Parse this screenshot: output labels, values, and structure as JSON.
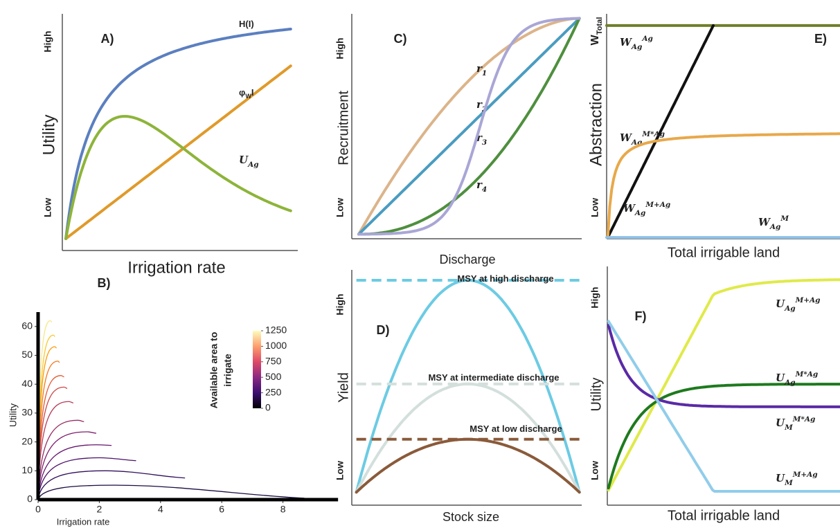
{
  "chart_data": [
    {
      "type": "schematic",
      "title": "A)",
      "xlabel": "Irrigation rate",
      "ylabel": "Utility",
      "ylevels": [
        "Low",
        "High"
      ],
      "series": [
        {
          "name": [
            {
              "text": "H(I)"
            }
          ],
          "color": "#5b7fc0"
        },
        {
          "name": [
            {
              "text": "φ"
            },
            {
              "text": "W",
              "shift": "sub"
            },
            {
              "text": "I"
            }
          ],
          "color": "#e09a2a"
        },
        {
          "name": [
            {
              "text": "U"
            },
            {
              "text": "Ag",
              "shift": "sub"
            }
          ],
          "color": "#8db43a"
        }
      ]
    },
    {
      "type": "line",
      "title": "B)",
      "xlabel": "Irrigation rate",
      "ylabel": "Utility",
      "xlim": [
        0,
        9.8
      ],
      "ylim": [
        0,
        65
      ],
      "xticks": [
        0,
        2,
        4,
        6,
        8
      ],
      "yticks": [
        0,
        10,
        20,
        30,
        40,
        50,
        60
      ],
      "colorbar": {
        "title": [
          "Available area to",
          "irrigate"
        ],
        "range": [
          0,
          1250
        ],
        "ticks": [
          0,
          250,
          500,
          750,
          1000,
          1250
        ],
        "colors": [
          "#000004",
          "#3b0f70",
          "#8c2981",
          "#de4968",
          "#fe9f6d",
          "#fcfdbf"
        ]
      },
      "series": [
        {
          "color": "#1b0c41",
          "x": [
            0,
            2.5,
            8.7
          ],
          "values": [
            0,
            5,
            0.5
          ]
        },
        {
          "color": "#2f0f5c",
          "x": [
            0,
            2.2,
            4.8
          ],
          "values": [
            0,
            10,
            7.5
          ]
        },
        {
          "color": "#4a1068",
          "x": [
            0,
            2.0,
            3.2
          ],
          "values": [
            0,
            14.5,
            13.5
          ]
        },
        {
          "color": "#65156e",
          "x": [
            0,
            1.9,
            2.4
          ],
          "values": [
            0,
            19,
            18.8
          ]
        },
        {
          "color": "#7e1e6c",
          "x": [
            0,
            1.6,
            1.9
          ],
          "values": [
            0,
            23.5,
            23
          ]
        },
        {
          "color": "#972c63",
          "x": [
            0,
            1.3,
            1.5
          ],
          "values": [
            0,
            27.5,
            27
          ]
        },
        {
          "color": "#b63a56",
          "x": [
            0,
            1.0,
            1.15
          ],
          "values": [
            0,
            34,
            33.5
          ]
        },
        {
          "color": "#cf4446",
          "x": [
            0,
            0.85,
            0.95
          ],
          "values": [
            0,
            39,
            38.5
          ]
        },
        {
          "color": "#e45a31",
          "x": [
            0,
            0.75,
            0.85
          ],
          "values": [
            0,
            43,
            42.5
          ]
        },
        {
          "color": "#f37819",
          "x": [
            0,
            0.65,
            0.7
          ],
          "values": [
            0,
            48,
            47.5
          ]
        },
        {
          "color": "#fb9b06",
          "x": [
            0,
            0.55,
            0.6
          ],
          "values": [
            0,
            53,
            52.5
          ]
        },
        {
          "color": "#f9c932",
          "x": [
            0,
            0.5,
            0.55
          ],
          "values": [
            0,
            57,
            56.5
          ]
        },
        {
          "color": "#f6e98a",
          "x": [
            0,
            0.4,
            0.45
          ],
          "values": [
            0,
            62,
            61.5
          ]
        }
      ]
    },
    {
      "type": "schematic",
      "title": "C)",
      "xlabel": "Discharge",
      "ylabel": "Recruitment",
      "ylevels": [
        "Low",
        "High"
      ],
      "series": [
        {
          "name": [
            {
              "text": "r"
            },
            {
              "text": "1",
              "shift": "sub"
            }
          ],
          "color": "#dcb48a"
        },
        {
          "name": [
            {
              "text": "r"
            },
            {
              "text": "2",
              "shift": "sub"
            }
          ],
          "color": "#4a9cc0"
        },
        {
          "name": [
            {
              "text": "r"
            },
            {
              "text": "3",
              "shift": "sub"
            }
          ],
          "color": "#4e8f3e"
        },
        {
          "name": [
            {
              "text": "r"
            },
            {
              "text": "4",
              "shift": "sub"
            }
          ],
          "color": "#a9a6d6"
        }
      ]
    },
    {
      "type": "schematic",
      "title": "D)",
      "xlabel": "Stock size",
      "ylabel": "Yield",
      "ylevels": [
        "Low",
        "High"
      ],
      "dashed_peaks": true,
      "series": [
        {
          "name": [
            {
              "text": "MSY at high discharge"
            }
          ],
          "color": "#6ccbe3"
        },
        {
          "name": [
            {
              "text": "MSY at intermediate discharge"
            }
          ],
          "color": "#d3dfdc"
        },
        {
          "name": [
            {
              "text": "MSY at low discharge"
            }
          ],
          "color": "#8a5a3a"
        }
      ]
    },
    {
      "type": "schematic",
      "title": "E)",
      "xlabel": "Total irrigable land",
      "ylabel": "Abstraction",
      "ylevels": [
        "Low",
        [
          {
            "text": "W"
          },
          {
            "text": "Total",
            "shift": "sub"
          }
        ]
      ],
      "series": [
        {
          "name": [
            {
              "text": "W"
            },
            {
              "text": "Ag",
              "shift": "sub"
            },
            {
              "text": "Ag",
              "shift": "sup"
            }
          ],
          "color": "#6f7f2a"
        },
        {
          "name": [
            {
              "text": "W"
            },
            {
              "text": "Ag",
              "shift": "sub"
            },
            {
              "text": "M*Ag",
              "shift": "sup"
            }
          ],
          "color": "#111111"
        },
        {
          "name": [
            {
              "text": "W"
            },
            {
              "text": "Ag",
              "shift": "sub"
            },
            {
              "text": "M+Ag",
              "shift": "sup"
            }
          ],
          "color": "#e8a84a"
        },
        {
          "name": [
            {
              "text": "W"
            },
            {
              "text": "Ag",
              "shift": "sub"
            },
            {
              "text": "M",
              "shift": "sup"
            }
          ],
          "color": "#8fbfe8"
        }
      ]
    },
    {
      "type": "schematic",
      "title": "F)",
      "xlabel": "Total irrigable land",
      "ylabel": "Utility",
      "ylevels": [
        "Low",
        "High"
      ],
      "series": [
        {
          "name": [
            {
              "text": "U"
            },
            {
              "text": "Ag",
              "shift": "sub"
            },
            {
              "text": "M+Ag",
              "shift": "sup"
            }
          ],
          "color": "#e0ea4a"
        },
        {
          "name": [
            {
              "text": "U"
            },
            {
              "text": "Ag",
              "shift": "sub"
            },
            {
              "text": "M*Ag",
              "shift": "sup"
            }
          ],
          "color": "#1e7a1e"
        },
        {
          "name": [
            {
              "text": "U"
            },
            {
              "text": "M",
              "shift": "sub"
            },
            {
              "text": "M*Ag",
              "shift": "sup"
            }
          ],
          "color": "#5a2aa6"
        },
        {
          "name": [
            {
              "text": "U"
            },
            {
              "text": "M",
              "shift": "sub"
            },
            {
              "text": "M+Ag",
              "shift": "sup"
            }
          ],
          "color": "#90cdea"
        }
      ]
    }
  ]
}
